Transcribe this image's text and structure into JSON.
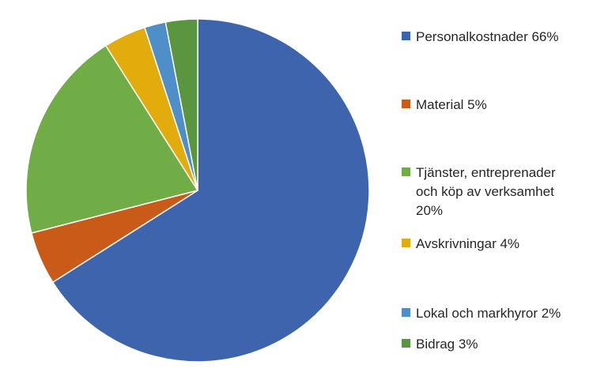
{
  "chart_data": {
    "type": "pie",
    "categories": [
      "Personalkostnader",
      "Material",
      "Tjänster, entreprenader och köp av verksamhet",
      "Avskrivningar",
      "Lokal och markhyror",
      "Bidrag"
    ],
    "values": [
      66,
      5,
      20,
      4,
      2,
      3
    ],
    "colors": [
      "#3E64AD",
      "#C95A17",
      "#70AD47",
      "#E2AC0C",
      "#4F8FC9",
      "#5A9540"
    ],
    "legend_labels": [
      "Personalkostnader 66%",
      "Material 5%",
      "Tjänster, entreprenader och köp av verksamhet 20%",
      "Avskrivningar 4%",
      "Lokal och markhyror 2%",
      "Bidrag 3%"
    ],
    "start_angle_deg": 0,
    "direction": "clockwise",
    "legend_position": "right"
  }
}
